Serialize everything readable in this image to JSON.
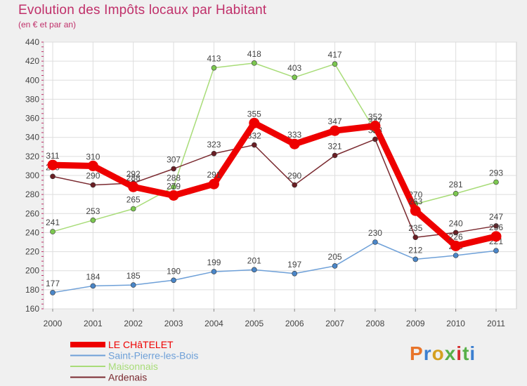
{
  "title": "Evolution des Impôts locaux par Habitant",
  "subtitle": "(en € et par an)",
  "logo_text": "Proxiti",
  "chart_data": {
    "type": "line",
    "title": "Evolution des Impôts locaux par Habitant",
    "subtitle": "(en € et par an)",
    "xlabel": "",
    "ylabel": "",
    "categories": [
      "2000",
      "2001",
      "2002",
      "2003",
      "2004",
      "2005",
      "2006",
      "2007",
      "2008",
      "2009",
      "2010",
      "2011"
    ],
    "ylim": [
      160,
      440
    ],
    "yticks": [
      160,
      180,
      200,
      220,
      240,
      260,
      280,
      300,
      320,
      340,
      360,
      380,
      400,
      420,
      440
    ],
    "grid": true,
    "legend_position": "bottom-left",
    "series": [
      {
        "name": "Saint-Pierre-les-Bois",
        "color": "#6ea0d8",
        "point_color": "#4a86c8",
        "values": [
          177,
          184,
          185,
          190,
          199,
          201,
          197,
          205,
          230,
          212,
          216,
          221
        ],
        "labels": [
          "177",
          "184",
          "185",
          "190",
          "199",
          "201",
          "197",
          "205",
          "230",
          "212",
          "216",
          "221"
        ]
      },
      {
        "name": "Maisonnais",
        "color": "#a8dc78",
        "point_color": "#7cc850",
        "values": [
          241,
          253,
          265,
          288,
          413,
          418,
          403,
          417,
          347,
          270,
          281,
          293
        ],
        "labels": [
          "241",
          "253",
          "265",
          "288",
          "413",
          "418",
          "403",
          "417",
          "347",
          "270",
          "281",
          "293"
        ]
      },
      {
        "name": "Ardenais",
        "color": "#7a2a30",
        "point_color": "#6a1e24",
        "values": [
          299,
          290,
          292,
          307,
          323,
          332,
          290,
          321,
          338,
          235,
          240,
          247
        ],
        "labels": [
          "299",
          "290",
          "292",
          "307",
          "323",
          "332",
          "290",
          "321",
          "338",
          "235",
          "240",
          "247"
        ]
      },
      {
        "name": "LE CHâTELET",
        "color": "#ee0000",
        "point_color": "#ee0000",
        "values": [
          311,
          310,
          288,
          279,
          291,
          355,
          333,
          347,
          352,
          263,
          226,
          236
        ],
        "labels": [
          "311",
          "310",
          "288",
          "279",
          "291",
          "355",
          "333",
          "347",
          "352",
          "263",
          "226",
          "236"
        ]
      }
    ],
    "legend": [
      "LE CHâTELET",
      "Saint-Pierre-les-Bois",
      "Maisonnais",
      "Ardenais"
    ]
  }
}
